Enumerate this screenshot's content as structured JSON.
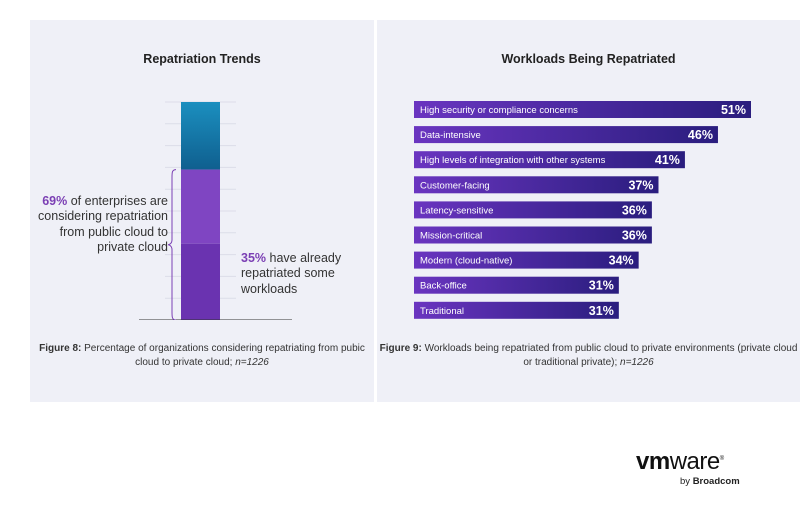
{
  "left": {
    "title": "Repatriation Trends",
    "considering_pct": "69%",
    "considering_text": "of enterprises are considering repatriation from public cloud to private cloud",
    "repatriated_pct": "35%",
    "repatriated_text": "have already repatriated some workloads",
    "caption_label": "Figure 8:",
    "caption_text": "Percentage of organizations considering repatriating from pubic cloud to private cloud;",
    "caption_n": "n=1226"
  },
  "right": {
    "title": "Workloads Being Repatriated",
    "caption_label": "Figure 9:",
    "caption_text": "Workloads being repatriated from public cloud to private environments (private cloud or traditional private);",
    "caption_n": "n=1226"
  },
  "chart_data": [
    {
      "type": "bar",
      "orientation": "vertical-stacked",
      "segments": [
        {
          "name": "69%",
          "value": 69,
          "color": "#7b3fb4"
        },
        {
          "name": "35%",
          "value": 35,
          "color": "#6a33b0"
        }
      ],
      "ylim": [
        0,
        100
      ],
      "colors": {
        "top": "#1b8fbf",
        "middle": "#7f45c2",
        "bottom": "#6a33b0"
      }
    },
    {
      "type": "bar",
      "orientation": "horizontal",
      "categories": [
        "High security or compliance concerns",
        "Data-intensive",
        "High levels of integration with other systems",
        "Customer-facing",
        "Latency-sensitive",
        "Mission-critical",
        "Modern (cloud-native)",
        "Back-office",
        "Traditional"
      ],
      "values": [
        51,
        46,
        41,
        37,
        36,
        36,
        34,
        31,
        31
      ],
      "value_labels": [
        "51%",
        "46%",
        "41%",
        "37%",
        "36%",
        "36%",
        "34%",
        "31%",
        "31%"
      ],
      "colors": {
        "start": "#6a35c0",
        "end": "#2a1d7e"
      }
    }
  ],
  "logo": {
    "wordmark_bold": "vm",
    "wordmark_rest": "ware",
    "registered": "®",
    "tag_prefix": "by",
    "tag_brand": "Broadcom"
  }
}
